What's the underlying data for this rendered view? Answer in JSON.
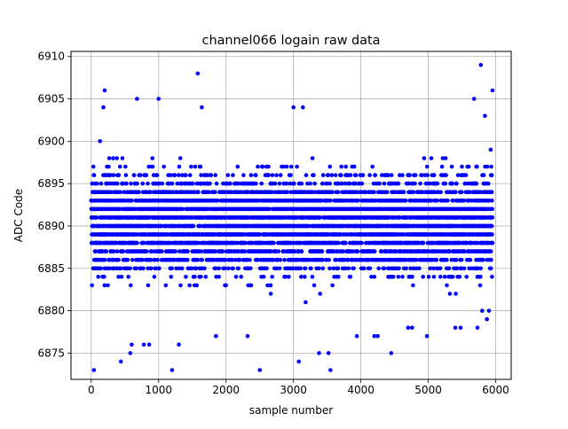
{
  "chart_data": {
    "type": "scatter",
    "title": "channel066 logain raw data",
    "xlabel": "sample number",
    "ylabel": "ADC Code",
    "xlim": [
      -300,
      6230
    ],
    "ylim": [
      6871.9,
      6910.6
    ],
    "xticks": [
      0,
      1000,
      2000,
      3000,
      4000,
      5000,
      6000
    ],
    "yticks": [
      6875,
      6880,
      6885,
      6890,
      6895,
      6900,
      6905,
      6910
    ],
    "grid": true,
    "marker_color": "#0000ff",
    "series": [
      {
        "num_samples": 6000,
        "x_range": [
          0,
          5952
        ],
        "y_integer_step": 1,
        "dense_band": [
          6879,
          6901
        ],
        "outliers": [
          {
            "x": 40,
            "y": 6873
          },
          {
            "x": 180,
            "y": 6904
          },
          {
            "x": 200,
            "y": 6906
          },
          {
            "x": 440,
            "y": 6874
          },
          {
            "x": 580,
            "y": 6875
          },
          {
            "x": 600,
            "y": 6876
          },
          {
            "x": 680,
            "y": 6905
          },
          {
            "x": 780,
            "y": 6876
          },
          {
            "x": 860,
            "y": 6876
          },
          {
            "x": 1000,
            "y": 6905
          },
          {
            "x": 1200,
            "y": 6873
          },
          {
            "x": 1300,
            "y": 6876
          },
          {
            "x": 1580,
            "y": 6908
          },
          {
            "x": 1640,
            "y": 6904
          },
          {
            "x": 1850,
            "y": 6877
          },
          {
            "x": 2320,
            "y": 6877
          },
          {
            "x": 2500,
            "y": 6873
          },
          {
            "x": 3000,
            "y": 6904
          },
          {
            "x": 3080,
            "y": 6874
          },
          {
            "x": 3140,
            "y": 6904
          },
          {
            "x": 3380,
            "y": 6875
          },
          {
            "x": 3520,
            "y": 6875
          },
          {
            "x": 3550,
            "y": 6873
          },
          {
            "x": 3940,
            "y": 6877
          },
          {
            "x": 4200,
            "y": 6877
          },
          {
            "x": 4250,
            "y": 6877
          },
          {
            "x": 4450,
            "y": 6875
          },
          {
            "x": 4700,
            "y": 6878
          },
          {
            "x": 4760,
            "y": 6878
          },
          {
            "x": 4980,
            "y": 6877
          },
          {
            "x": 5400,
            "y": 6878
          },
          {
            "x": 5480,
            "y": 6878
          },
          {
            "x": 5680,
            "y": 6905
          },
          {
            "x": 5730,
            "y": 6878
          },
          {
            "x": 5780,
            "y": 6909
          },
          {
            "x": 5800,
            "y": 6880
          },
          {
            "x": 5840,
            "y": 6903
          },
          {
            "x": 5870,
            "y": 6879
          },
          {
            "x": 5900,
            "y": 6880
          },
          {
            "x": 5952,
            "y": 6906
          }
        ]
      }
    ]
  }
}
